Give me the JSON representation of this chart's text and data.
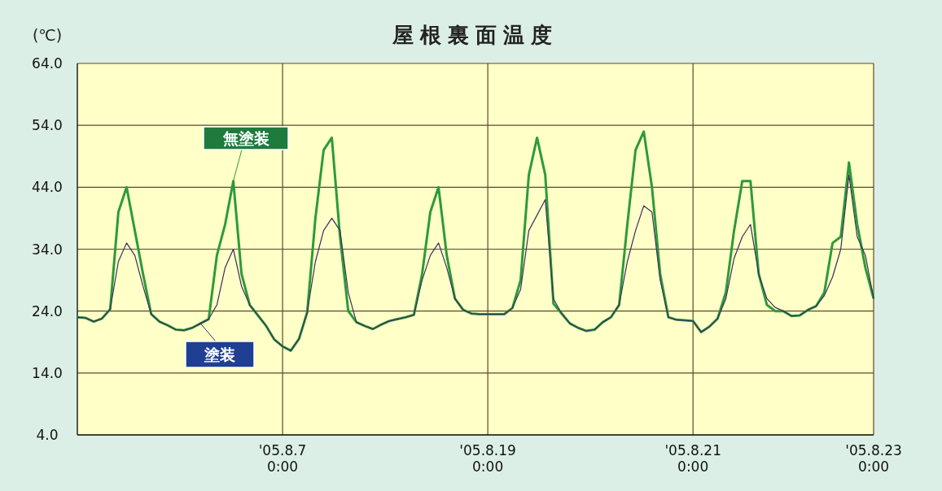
{
  "chart_data": {
    "type": "line",
    "title": "屋根裏面温度",
    "ylabel": "(℃)",
    "categories": [
      null,
      null,
      null,
      null,
      null,
      null,
      null,
      null,
      null,
      null,
      null,
      null,
      null,
      null,
      null,
      null,
      null,
      null,
      null,
      null,
      null,
      null,
      null,
      null,
      null,
      "'05.8.7 0:00",
      null,
      null,
      null,
      null,
      null,
      null,
      null,
      null,
      null,
      null,
      null,
      null,
      null,
      null,
      null,
      null,
      null,
      null,
      null,
      null,
      null,
      null,
      null,
      null,
      "'05.8.19 0:00",
      null,
      null,
      null,
      null,
      null,
      null,
      null,
      null,
      null,
      null,
      null,
      null,
      null,
      null,
      null,
      null,
      null,
      null,
      null,
      null,
      null,
      null,
      null,
      null,
      "'05.8.21 0:00",
      null,
      null,
      null,
      null,
      null,
      null,
      null,
      null,
      null,
      null,
      null,
      null,
      null,
      null,
      null,
      null,
      null,
      null,
      null,
      null,
      null,
      "'05.8.23 0:00"
    ],
    "ylim": [
      4,
      64
    ],
    "yticks": [
      {
        "value": 4,
        "label": "4.0"
      },
      {
        "value": 14,
        "label": "14.0"
      },
      {
        "value": 24,
        "label": "24.0"
      },
      {
        "value": 34,
        "label": "34.0"
      },
      {
        "value": 44,
        "label": "44.0"
      },
      {
        "value": 54,
        "label": "54.0"
      },
      {
        "value": 64,
        "label": "64.0"
      }
    ],
    "grid": true,
    "line_style": "solid",
    "series": [
      {
        "name": "無塗装",
        "color": "#2e9a3a",
        "values": [
          23,
          22.9,
          22.3,
          22.8,
          24.3,
          40,
          44,
          37,
          30,
          23.5,
          22.3,
          21.7,
          21,
          20.9,
          21.3,
          22,
          22.7,
          33,
          38,
          45,
          30,
          25,
          23.3,
          21.6,
          19.4,
          18.3,
          17.6,
          19.5,
          23.8,
          39,
          50,
          52,
          36,
          24,
          22.2,
          21.6,
          21.1,
          21.8,
          22.4,
          22.7,
          23,
          23.4,
          30,
          40,
          44,
          33,
          26,
          24.2,
          23.6,
          23.5,
          23.5,
          23.5,
          23.5,
          24.5,
          29,
          46,
          52,
          46,
          25.2,
          23.6,
          22,
          21.3,
          20.8,
          21,
          22.2,
          23,
          25,
          38,
          50,
          53,
          44,
          30,
          23,
          22.6,
          22.5,
          22.4,
          20.6,
          21.5,
          22.8,
          27,
          37,
          45,
          45,
          30,
          25,
          24,
          24,
          23.2,
          23.3,
          24.2,
          24.8,
          27,
          35,
          36,
          48,
          38,
          31,
          26
        ]
      },
      {
        "name": "塗装",
        "color": "#3b2d62",
        "values": [
          23,
          22.9,
          22.3,
          22.8,
          24.3,
          32,
          35,
          33,
          28,
          23.5,
          22.3,
          21.7,
          21,
          20.9,
          21.3,
          22,
          22.7,
          25,
          31,
          34,
          28,
          25,
          23.3,
          21.6,
          19.4,
          18.3,
          17.6,
          19.5,
          23.8,
          32,
          37,
          39,
          37,
          27,
          22.2,
          21.6,
          21.1,
          21.8,
          22.4,
          22.7,
          23,
          23.4,
          29,
          33,
          35,
          31,
          26,
          24.2,
          23.6,
          23.5,
          23.5,
          23.5,
          23.5,
          24.5,
          27.5,
          37,
          39.5,
          42,
          26,
          23.6,
          22,
          21.3,
          20.8,
          21,
          22.2,
          23,
          25,
          32,
          37,
          41,
          40,
          29,
          23,
          22.6,
          22.5,
          22.4,
          20.6,
          21.5,
          22.8,
          26,
          32.5,
          36,
          38,
          30,
          26,
          24.6,
          24,
          23.2,
          23.3,
          24.2,
          24.8,
          26.5,
          29.5,
          34,
          46,
          36,
          33,
          26
        ]
      }
    ]
  }
}
